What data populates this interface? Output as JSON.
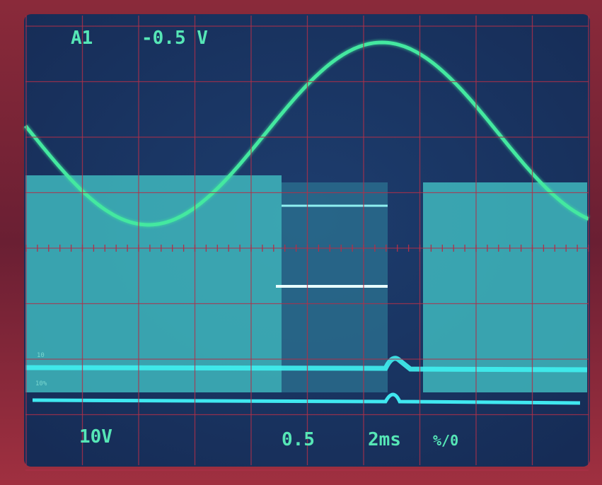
{
  "screen": {
    "top_readouts": {
      "channel": "A1",
      "offset": "-0.5 V"
    },
    "bottom_readouts": {
      "volts_per_div": "10V",
      "position": "0.5",
      "time_per_div": "2ms",
      "mode": "%/0"
    },
    "graticule_marks": {
      "upper": "10",
      "lower": "10%"
    }
  }
}
